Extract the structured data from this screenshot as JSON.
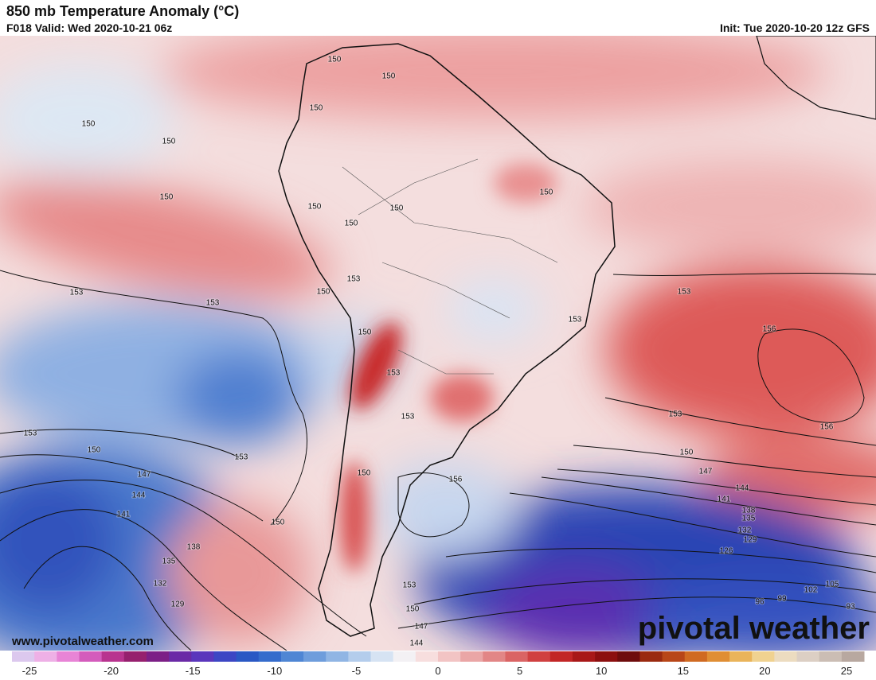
{
  "header": {
    "title": "850 mb Temperature Anomaly (°C)",
    "valid": "F018 Valid: Wed 2020-10-21 06z",
    "init": "Init: Tue 2020-10-20 12z GFS"
  },
  "map": {
    "contour_labels": [
      "150",
      "150",
      "150",
      "150",
      "150",
      "150",
      "150",
      "150",
      "150",
      "150",
      "153",
      "150",
      "153",
      "153",
      "153",
      "150",
      "153",
      "153",
      "153",
      "156",
      "156",
      "153",
      "153",
      "150",
      "153",
      "150",
      "147",
      "156",
      "150",
      "144",
      "141",
      "138",
      "135",
      "147",
      "144",
      "141",
      "150",
      "132",
      "129",
      "126",
      "138",
      "135",
      "132",
      "129",
      "153",
      "150",
      "102",
      "105",
      "99",
      "96",
      "93",
      "147",
      "144"
    ]
  },
  "watermark": "www.pivotalweather.com",
  "logo": "pivotal weather",
  "colorbar": {
    "ticks": [
      "-25",
      "-20",
      "-15",
      "-10",
      "-5",
      "0",
      "5",
      "10",
      "15",
      "20",
      "25"
    ],
    "colors": [
      "#dcc8ee",
      "#eeb0e6",
      "#e884d6",
      "#d45cbc",
      "#b8348f",
      "#96206e",
      "#7c1f86",
      "#6a2aa6",
      "#5a36bc",
      "#3c46c4",
      "#2a58c4",
      "#356ccc",
      "#4f86d4",
      "#6e9ddc",
      "#90b5e4",
      "#b4cdec",
      "#d6e3f3",
      "#f3f1f4",
      "#f7dede",
      "#f2c4c4",
      "#eaa6a6",
      "#e28686",
      "#da6464",
      "#d04040",
      "#c22626",
      "#a81818",
      "#8c0f0f",
      "#6e0c0c",
      "#9a2a10",
      "#b84618",
      "#d06a22",
      "#e08e34",
      "#eab45a",
      "#f0d290",
      "#ecdcc0",
      "#dccfc4",
      "#cbbdb4",
      "#b8a8a0"
    ]
  }
}
